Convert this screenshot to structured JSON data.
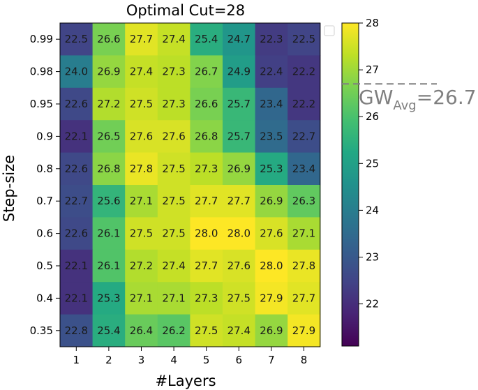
{
  "chart_data": {
    "type": "heatmap",
    "title": "Optimal Cut=28",
    "xlabel": "#Layers",
    "ylabel": "Step-size",
    "x_categories": [
      "1",
      "2",
      "3",
      "4",
      "5",
      "6",
      "7",
      "8"
    ],
    "y_categories": [
      "0.99",
      "0.98",
      "0.95",
      "0.9",
      "0.8",
      "0.7",
      "0.6",
      "0.5",
      "0.4",
      "0.35"
    ],
    "values": [
      [
        22.5,
        26.6,
        27.7,
        27.4,
        25.4,
        24.7,
        22.3,
        22.5
      ],
      [
        24.0,
        26.9,
        27.4,
        27.3,
        26.7,
        24.9,
        22.4,
        22.2
      ],
      [
        22.6,
        27.2,
        27.5,
        27.3,
        26.6,
        25.7,
        23.4,
        22.2
      ],
      [
        22.1,
        26.5,
        27.6,
        27.6,
        26.8,
        25.7,
        23.5,
        22.7
      ],
      [
        22.6,
        26.8,
        27.8,
        27.5,
        27.3,
        26.9,
        25.3,
        23.4
      ],
      [
        22.7,
        25.6,
        27.1,
        27.5,
        27.7,
        27.7,
        26.9,
        26.3
      ],
      [
        22.6,
        26.1,
        27.5,
        27.5,
        28.0,
        28.0,
        27.6,
        27.1
      ],
      [
        22.1,
        26.1,
        27.2,
        27.4,
        27.7,
        27.6,
        28.0,
        27.8
      ],
      [
        22.1,
        25.3,
        27.1,
        27.1,
        27.3,
        27.5,
        27.9,
        27.7
      ],
      [
        22.8,
        25.4,
        26.4,
        26.2,
        27.5,
        27.4,
        26.9,
        27.9
      ]
    ],
    "value_labels": [
      [
        "22.5",
        "26.6",
        "27.7",
        "27.4",
        "25.4",
        "24.7",
        "22.3",
        "22.5"
      ],
      [
        "24.0",
        "26.9",
        "27.4",
        "27.3",
        "26.7",
        "24.9",
        "22.4",
        "22.2"
      ],
      [
        "22.6",
        "27.2",
        "27.5",
        "27.3",
        "26.6",
        "25.7",
        "23.4",
        "22.2"
      ],
      [
        "22.1",
        "26.5",
        "27.6",
        "27.6",
        "26.8",
        "25.7",
        "23.5",
        "22.7"
      ],
      [
        "22.6",
        "26.8",
        "27.8",
        "27.5",
        "27.3",
        "26.9",
        "25.3",
        "23.4"
      ],
      [
        "22.7",
        "25.6",
        "27.1",
        "27.5",
        "27.7",
        "27.7",
        "26.9",
        "26.3"
      ],
      [
        "22.6",
        "26.1",
        "27.5",
        "27.5",
        "28.0",
        "28.0",
        "27.6",
        "27.1"
      ],
      [
        "22.1",
        "26.1",
        "27.2",
        "27.4",
        "27.7",
        "27.6",
        "28.0",
        "27.8"
      ],
      [
        "22.1",
        "25.3",
        "27.1",
        "27.1",
        "27.3",
        "27.5",
        "27.9",
        "27.7"
      ],
      [
        "22.8",
        "25.4",
        "26.4",
        "26.2",
        "27.5",
        "27.4",
        "26.9",
        "27.9"
      ]
    ],
    "colormap": "viridis",
    "colorbar": {
      "min": 21.1,
      "max": 28.0,
      "ticks": [
        22,
        23,
        24,
        25,
        26,
        27,
        28
      ],
      "tick_labels": [
        "22",
        "23",
        "24",
        "25",
        "26",
        "27",
        "28"
      ]
    },
    "reference_line": {
      "value": 26.7,
      "label_main": "GW",
      "label_sub": "Avg",
      "label_value": "=26.7",
      "color": "#808080",
      "style": "dashed"
    },
    "legend": {
      "placement": "top-right",
      "entries": []
    }
  }
}
